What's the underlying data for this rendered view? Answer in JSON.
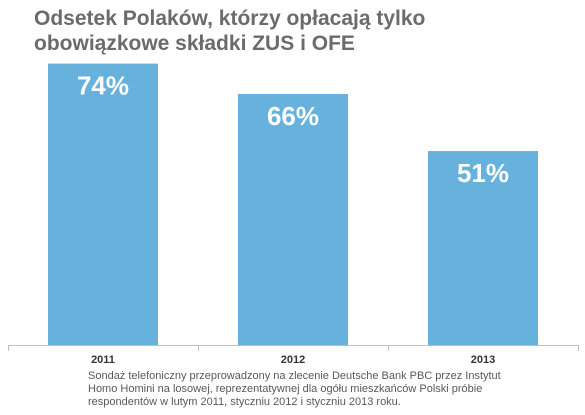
{
  "chart_data": {
    "type": "bar",
    "title_lines": [
      "Odsetek Polaków, którzy opłacają tylko",
      "obowiązkowe składki ZUS i OFE"
    ],
    "categories": [
      "2011",
      "2012",
      "2013"
    ],
    "values": [
      74,
      66,
      51
    ],
    "value_labels": [
      "74%",
      "66%",
      "51%"
    ],
    "ylim": [
      0,
      76
    ],
    "grid": false,
    "legend": "none",
    "bar_color": "#66b2dd",
    "label_color": "#ffffff"
  },
  "footnote_lines": [
    "Sondaż telefoniczny przeprowadzony na zlecenie Deutsche Bank PBC przez Instytut",
    "Homo Homini na losowej, reprezentatywnej dla ogółu mieszkańców Polski próbie",
    "respondentów w lutym 2011, styczniu 2012 i styczniu 2013 roku."
  ]
}
